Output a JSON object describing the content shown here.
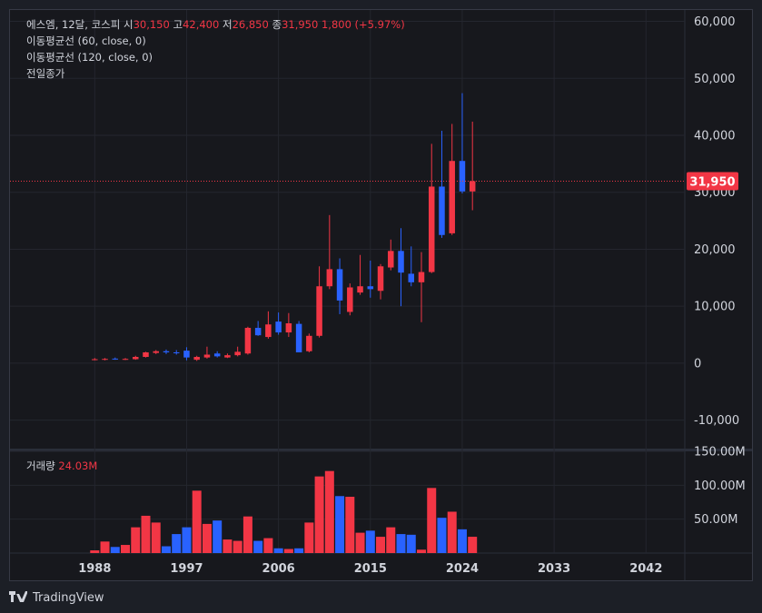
{
  "legend": {
    "symbol": "에스엠, 12달, 코스피",
    "open_label": "시",
    "open": "30,150",
    "high_label": "고",
    "high": "42,400",
    "low_label": "저",
    "low": "26,850",
    "close_label": "종",
    "close": "31,950",
    "change": "1,800 (+5.97%)",
    "ma1": "이동평균선 (60, close, 0)",
    "ma2": "이동평균선 (120, close, 0)",
    "prev_close": "전일종가",
    "volume_label": "거래량",
    "volume_value": "24.03M"
  },
  "footer": {
    "brand": "TradingView",
    "logo_icon": "tradingview-logo-icon"
  },
  "colors": {
    "up": "#f23645",
    "down": "#2962ff",
    "background": "#17181d",
    "text": "#d1d4dc",
    "grid": "#24262e"
  },
  "chart_data": {
    "type": "candlestick",
    "price_ticks": [
      "60,000",
      "50,000",
      "40,000",
      "30,000",
      "20,000",
      "10,000",
      "0",
      "-10,000"
    ],
    "price_tick_values": [
      60000,
      50000,
      40000,
      30000,
      20000,
      10000,
      0,
      -10000
    ],
    "price_range": [
      -15000,
      62000
    ],
    "last_price_label": "31,950",
    "last_price": 31950,
    "volume_ticks": [
      "150.00M",
      "100.00M",
      "50.00M"
    ],
    "volume_tick_values": [
      150000000,
      100000000,
      50000000
    ],
    "volume_range": [
      0,
      150000000
    ],
    "x_ticks": [
      "1988",
      "1997",
      "2006",
      "2015",
      "2024",
      "2033",
      "2042"
    ],
    "x_tick_values": [
      1988,
      1997,
      2006,
      2015,
      2024,
      2033,
      2042
    ],
    "x_range": [
      1979.7,
      2045.8
    ],
    "candles": [
      {
        "t": 1988,
        "o": 600,
        "h": 900,
        "l": 500,
        "c": 700
      },
      {
        "t": 1989,
        "o": 650,
        "h": 900,
        "l": 500,
        "c": 750
      },
      {
        "t": 1990,
        "o": 800,
        "h": 1000,
        "l": 600,
        "c": 700
      },
      {
        "t": 1991,
        "o": 700,
        "h": 900,
        "l": 550,
        "c": 750
      },
      {
        "t": 1992,
        "o": 700,
        "h": 1300,
        "l": 600,
        "c": 1100
      },
      {
        "t": 1993,
        "o": 1100,
        "h": 2000,
        "l": 1000,
        "c": 1900
      },
      {
        "t": 1994,
        "o": 1800,
        "h": 2300,
        "l": 1600,
        "c": 2100
      },
      {
        "t": 1995,
        "o": 2100,
        "h": 2400,
        "l": 1600,
        "c": 1900
      },
      {
        "t": 1996,
        "o": 1900,
        "h": 2300,
        "l": 1500,
        "c": 1800
      },
      {
        "t": 1997,
        "o": 2200,
        "h": 2800,
        "l": 500,
        "c": 1000
      },
      {
        "t": 1998,
        "o": 600,
        "h": 1300,
        "l": 400,
        "c": 1100
      },
      {
        "t": 1999,
        "o": 1000,
        "h": 2900,
        "l": 800,
        "c": 1500
      },
      {
        "t": 2000,
        "o": 1700,
        "h": 2100,
        "l": 1000,
        "c": 1200
      },
      {
        "t": 2001,
        "o": 1000,
        "h": 1700,
        "l": 900,
        "c": 1400
      },
      {
        "t": 2002,
        "o": 1400,
        "h": 2900,
        "l": 1200,
        "c": 2000
      },
      {
        "t": 2003,
        "o": 1700,
        "h": 6400,
        "l": 1500,
        "c": 6200
      },
      {
        "t": 2004,
        "o": 6200,
        "h": 7400,
        "l": 4800,
        "c": 4900
      },
      {
        "t": 2005,
        "o": 4600,
        "h": 9100,
        "l": 4300,
        "c": 6800
      },
      {
        "t": 2006,
        "o": 7300,
        "h": 8900,
        "l": 5000,
        "c": 5400
      },
      {
        "t": 2007,
        "o": 5400,
        "h": 8800,
        "l": 4600,
        "c": 7000
      },
      {
        "t": 2008,
        "o": 6900,
        "h": 7400,
        "l": 1900,
        "c": 1900
      },
      {
        "t": 2009,
        "o": 2100,
        "h": 5200,
        "l": 1900,
        "c": 4800
      },
      {
        "t": 2010,
        "o": 4800,
        "h": 17000,
        "l": 4500,
        "c": 13500
      },
      {
        "t": 2011,
        "o": 13500,
        "h": 26000,
        "l": 13000,
        "c": 16500
      },
      {
        "t": 2012,
        "o": 16500,
        "h": 18400,
        "l": 8600,
        "c": 11000
      },
      {
        "t": 2013,
        "o": 9000,
        "h": 14000,
        "l": 8400,
        "c": 13300
      },
      {
        "t": 2014,
        "o": 12400,
        "h": 19000,
        "l": 12000,
        "c": 13500
      },
      {
        "t": 2015,
        "o": 13500,
        "h": 18000,
        "l": 11500,
        "c": 13000
      },
      {
        "t": 2016,
        "o": 12700,
        "h": 17400,
        "l": 11200,
        "c": 17000
      },
      {
        "t": 2017,
        "o": 16800,
        "h": 21700,
        "l": 16300,
        "c": 19700
      },
      {
        "t": 2018,
        "o": 19700,
        "h": 23700,
        "l": 10000,
        "c": 15900
      },
      {
        "t": 2019,
        "o": 15700,
        "h": 20500,
        "l": 13500,
        "c": 14200
      },
      {
        "t": 2020,
        "o": 14200,
        "h": 19500,
        "l": 7200,
        "c": 16000
      },
      {
        "t": 2021,
        "o": 16000,
        "h": 38500,
        "l": 15800,
        "c": 31000
      },
      {
        "t": 2022,
        "o": 31000,
        "h": 40800,
        "l": 22000,
        "c": 22500
      },
      {
        "t": 2023,
        "o": 22800,
        "h": 42000,
        "l": 22500,
        "c": 35500
      },
      {
        "t": 2024,
        "o": 35500,
        "h": 47400,
        "l": 29800,
        "c": 30150
      },
      {
        "t": 2025,
        "o": 30150,
        "h": 42400,
        "l": 26850,
        "c": 31950
      }
    ],
    "volume": [
      4,
      17,
      9,
      12,
      38,
      55,
      45,
      10,
      28,
      38,
      92,
      43,
      48,
      20,
      18,
      54,
      18,
      22,
      7,
      6,
      7,
      45,
      113,
      121,
      84,
      83,
      30,
      33,
      24,
      38,
      28,
      27,
      5,
      96,
      52,
      61,
      35,
      24.03
    ]
  }
}
